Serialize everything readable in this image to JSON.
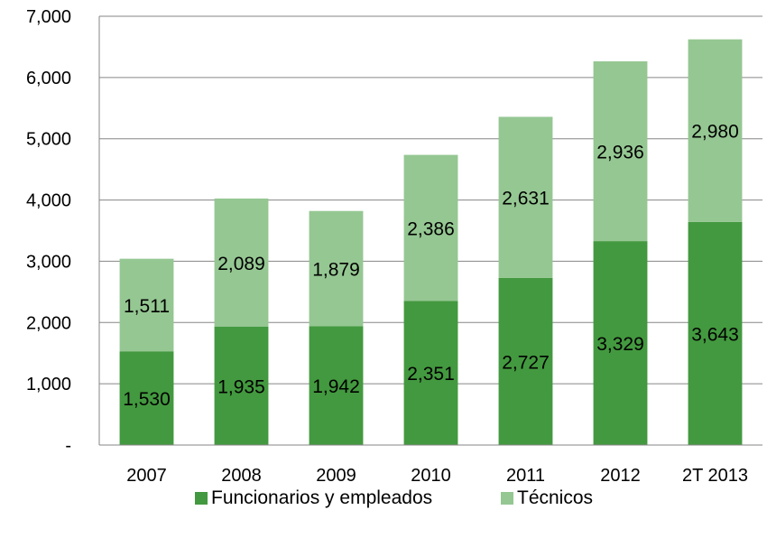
{
  "chart_data": {
    "type": "bar",
    "stacked": true,
    "categories": [
      "2007",
      "2008",
      "2009",
      "2010",
      "2011",
      "2012",
      "2T 2013"
    ],
    "series": [
      {
        "name": "Funcionarios y empleados",
        "values": [
          1530,
          1935,
          1942,
          2351,
          2727,
          3329,
          3643
        ],
        "color": "#43993f",
        "labels": [
          "1,530",
          "1,935",
          "1,942",
          "2,351",
          "2,727",
          "3,329",
          "3,643"
        ]
      },
      {
        "name": "Técnicos",
        "values": [
          1511,
          2089,
          1879,
          2386,
          2631,
          2936,
          2980
        ],
        "color": "#95c792",
        "labels": [
          "1,511",
          "2,089",
          "1,879",
          "2,386",
          "2,631",
          "2,936",
          "2,980"
        ]
      }
    ],
    "ylim": [
      0,
      7000
    ],
    "yticks": [
      0,
      1000,
      2000,
      3000,
      4000,
      5000,
      6000,
      7000
    ],
    "ytick_labels": [
      "-",
      "1,000",
      "2,000",
      "3,000",
      "4,000",
      "5,000",
      "6,000",
      "7,000"
    ],
    "grid": true,
    "legend_position": "bottom",
    "title": "",
    "xlabel": "",
    "ylabel": ""
  }
}
